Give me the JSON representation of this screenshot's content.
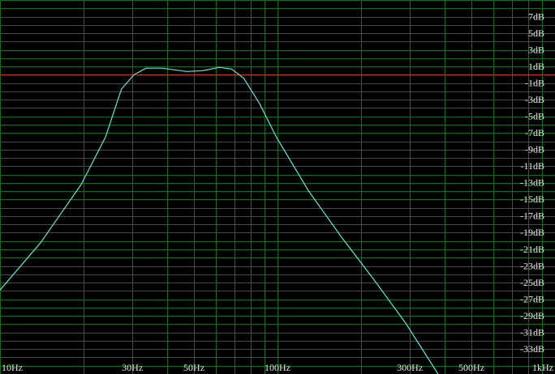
{
  "chart_data": {
    "type": "line",
    "log_x": true,
    "xlim": [
      10,
      1000
    ],
    "ylim": [
      -36,
      9
    ],
    "xticks": [
      {
        "value": 10,
        "label": "10Hz"
      },
      {
        "value": 30,
        "label": "30Hz"
      },
      {
        "value": 50,
        "label": "50Hz"
      },
      {
        "value": 100,
        "label": "100Hz"
      },
      {
        "value": 300,
        "label": "300Hz"
      },
      {
        "value": 500,
        "label": "500Hz"
      },
      {
        "value": 1000,
        "label": "1kHz"
      }
    ],
    "xminor": [
      20,
      40,
      60,
      70,
      80,
      90,
      200,
      400,
      600,
      700,
      800,
      900
    ],
    "yticks": [
      {
        "value": 7,
        "label": "7dB"
      },
      {
        "value": 5,
        "label": "5dB"
      },
      {
        "value": 3,
        "label": "3dB"
      },
      {
        "value": 1,
        "label": "1dB"
      },
      {
        "value": -1,
        "label": "-1dB"
      },
      {
        "value": -3,
        "label": "-3dB"
      },
      {
        "value": -5,
        "label": "-5dB"
      },
      {
        "value": -7,
        "label": "-7dB"
      },
      {
        "value": -9,
        "label": "-9dB"
      },
      {
        "value": -11,
        "label": "-11dB"
      },
      {
        "value": -13,
        "label": "-13dB"
      },
      {
        "value": -15,
        "label": "-15dB"
      },
      {
        "value": -17,
        "label": "-17dB"
      },
      {
        "value": -19,
        "label": "-19dB"
      },
      {
        "value": -21,
        "label": "-21dB"
      },
      {
        "value": -23,
        "label": "-23dB"
      },
      {
        "value": -25,
        "label": "-25dB"
      },
      {
        "value": -27,
        "label": "-27dB"
      },
      {
        "value": -29,
        "label": "-29dB"
      },
      {
        "value": -31,
        "label": "-31dB"
      },
      {
        "value": -33,
        "label": "-33dB"
      }
    ],
    "ygrid_step": 1,
    "grid": true,
    "grid_color": "#17691f",
    "reference_line": {
      "value": 0,
      "color": "#c0392b"
    },
    "series": [
      {
        "color": "#5fe8d8",
        "x": [
          10,
          14,
          19.6,
          24,
          27.4,
          30.4,
          33.6,
          38.4,
          47,
          53.8,
          61.6,
          68.2,
          75.5,
          86.3,
          98.7,
          129,
          169,
          222,
          290,
          379
        ],
        "values": [
          -25.9,
          -20.2,
          -13.2,
          -7.5,
          -1.7,
          0,
          0.8,
          0.8,
          0.4,
          0.5,
          0.9,
          0.7,
          -0.4,
          -3.5,
          -7.4,
          -13.9,
          -19.4,
          -24.6,
          -29.9,
          -36
        ]
      }
    ]
  }
}
